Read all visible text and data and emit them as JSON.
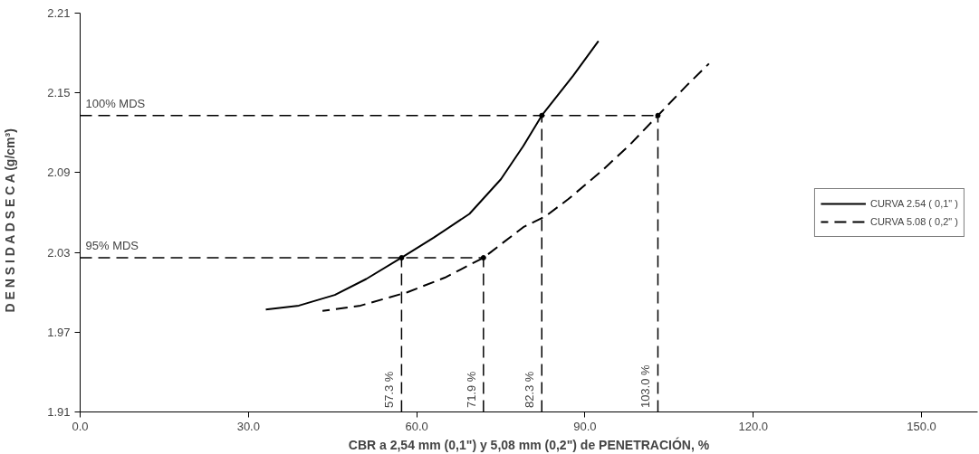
{
  "chart_data": {
    "type": "line",
    "xlabel": "CBR a 2,54 mm (0,1\") y 5,08 mm (0,2\") de PENETRACIÓN, %",
    "ylabel": "D E N S I D A D   S E C A   (g/cm³)",
    "xlim": [
      0,
      160
    ],
    "ylim": [
      1.91,
      2.21
    ],
    "xticks": [
      {
        "value": 0,
        "label": "0.0"
      },
      {
        "value": 30,
        "label": "30.0"
      },
      {
        "value": 60,
        "label": "60.0"
      },
      {
        "value": 90,
        "label": "90.0"
      },
      {
        "value": 120,
        "label": "120.0"
      },
      {
        "value": 150,
        "label": "150.0"
      }
    ],
    "yticks": [
      1.91,
      1.97,
      2.03,
      2.09,
      2.15,
      2.21
    ],
    "grid": false,
    "legend": "right",
    "series": [
      {
        "name": "CURVA 2.54 ( 0,1\" )",
        "color": "#000000",
        "line_style": "solid",
        "x": [
          33.1,
          39.0,
          45.4,
          51.0,
          57.3,
          63.0,
          69.4,
          75.0,
          79.0,
          82.3,
          87.9,
          92.4
        ],
        "values": [
          1.987,
          1.99,
          1.998,
          2.01,
          2.026,
          2.041,
          2.059,
          2.085,
          2.11,
          2.133,
          2.163,
          2.189
        ]
      },
      {
        "name": "CURVA 5.08 ( 0,2\" )",
        "color": "#000000",
        "line_style": "dashed",
        "x": [
          43.2,
          50.0,
          58.3,
          65.0,
          71.9,
          79.0,
          82.9,
          87.0,
          92.9,
          98.0,
          103.0,
          108.0,
          112.1
        ],
        "values": [
          1.986,
          1.99,
          2.0,
          2.011,
          2.026,
          2.049,
          2.057,
          2.07,
          2.091,
          2.111,
          2.133,
          2.155,
          2.172
        ]
      }
    ],
    "ref_lines": [
      {
        "axis": "y",
        "value": 2.133,
        "label": "100% MDS",
        "line_style": "dashed"
      },
      {
        "axis": "y",
        "value": 2.026,
        "label": "95% MDS",
        "line_style": "dashed"
      },
      {
        "axis": "x",
        "value": 57.3,
        "label": "57.3 %",
        "line_style": "dashed"
      },
      {
        "axis": "x",
        "value": 71.9,
        "label": "71.9 %",
        "line_style": "dashed"
      },
      {
        "axis": "x",
        "value": 82.3,
        "label": "82.3 %",
        "line_style": "dashed"
      },
      {
        "axis": "x",
        "value": 103.0,
        "label": "103.0 %",
        "line_style": "dashed"
      }
    ]
  }
}
